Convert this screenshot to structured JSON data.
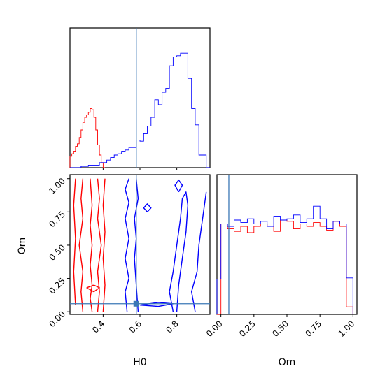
{
  "chart_data": [
    {
      "type": "histogram",
      "panel": "H0 marginal",
      "xlim": [
        0.22,
        0.98
      ],
      "x_ticks": [
        0.4,
        0.6,
        0.8
      ],
      "truth_x": 0.58,
      "colors": {
        "series_a": "#ff0000",
        "series_b": "#0000ff",
        "truth": "#3b78b6"
      },
      "series": [
        {
          "color_key": "series_a",
          "bin_edges": [
            0.22,
            0.23,
            0.24,
            0.25,
            0.26,
            0.27,
            0.28,
            0.29,
            0.3,
            0.31,
            0.32,
            0.33,
            0.34,
            0.35,
            0.36,
            0.37,
            0.38,
            0.39,
            0.4,
            0.41
          ],
          "counts": [
            0.09,
            0.11,
            0.13,
            0.17,
            0.19,
            0.24,
            0.3,
            0.36,
            0.4,
            0.42,
            0.44,
            0.47,
            0.46,
            0.4,
            0.3,
            0.18,
            0.1,
            0.04,
            0.0
          ]
        },
        {
          "color_key": "series_b",
          "bin_edges": [
            0.22,
            0.28,
            0.32,
            0.38,
            0.42,
            0.44,
            0.46,
            0.48,
            0.5,
            0.52,
            0.54,
            0.56,
            0.58,
            0.6,
            0.62,
            0.64,
            0.66,
            0.68,
            0.7,
            0.72,
            0.74,
            0.76,
            0.78,
            0.8,
            0.82,
            0.84,
            0.86,
            0.88,
            0.9,
            0.92,
            0.94,
            0.96,
            0.98
          ],
          "counts": [
            0.0,
            0.01,
            0.02,
            0.04,
            0.06,
            0.08,
            0.1,
            0.11,
            0.13,
            0.14,
            0.16,
            0.16,
            0.22,
            0.21,
            0.27,
            0.33,
            0.4,
            0.54,
            0.5,
            0.6,
            0.63,
            0.81,
            0.88,
            0.89,
            0.91,
            0.91,
            0.71,
            0.47,
            0.34,
            0.1,
            0.1,
            0.0
          ]
        }
      ]
    },
    {
      "type": "contour",
      "panel": "H0 vs Om joint",
      "xlabel": "H0",
      "ylabel": "Om",
      "xlim": [
        0.22,
        0.98
      ],
      "ylim": [
        -0.02,
        1.03
      ],
      "x_ticks": [
        0.4,
        0.6,
        0.8
      ],
      "x_tick_labels": [
        "0.4",
        "0.6",
        "0.8"
      ],
      "y_ticks": [
        0.0,
        0.25,
        0.5,
        0.75,
        1.0
      ],
      "y_tick_labels": [
        "0.00",
        "0.25",
        "0.50",
        "0.75",
        "1.00"
      ],
      "truth_point": [
        0.58,
        0.06
      ],
      "contours": [
        {
          "color_key": "series_a",
          "points": [
            [
              0.34,
              0.0
            ],
            [
              0.33,
              0.1
            ],
            [
              0.34,
              0.2
            ],
            [
              0.33,
              0.35
            ],
            [
              0.34,
              0.5
            ],
            [
              0.33,
              0.65
            ],
            [
              0.34,
              0.8
            ],
            [
              0.33,
              1.0
            ]
          ]
        },
        {
          "color_key": "series_a",
          "points": [
            [
              0.29,
              0.0
            ],
            [
              0.28,
              0.15
            ],
            [
              0.29,
              0.3
            ],
            [
              0.27,
              0.5
            ],
            [
              0.29,
              0.7
            ],
            [
              0.28,
              0.85
            ],
            [
              0.29,
              1.0
            ]
          ]
        },
        {
          "color_key": "series_a",
          "points": [
            [
              0.37,
              0.0
            ],
            [
              0.38,
              0.15
            ],
            [
              0.37,
              0.3
            ],
            [
              0.39,
              0.5
            ],
            [
              0.37,
              0.7
            ],
            [
              0.38,
              0.85
            ],
            [
              0.37,
              1.0
            ]
          ]
        },
        {
          "color_key": "series_a",
          "points": [
            [
              0.4,
              0.0
            ],
            [
              0.41,
              0.2
            ],
            [
              0.4,
              0.4
            ],
            [
              0.41,
              0.6
            ],
            [
              0.4,
              0.8
            ],
            [
              0.41,
              1.0
            ]
          ]
        },
        {
          "color_key": "series_a",
          "points": [
            [
              0.25,
              0.05
            ],
            [
              0.24,
              0.3
            ],
            [
              0.25,
              0.55
            ],
            [
              0.24,
              0.8
            ],
            [
              0.25,
              1.0
            ]
          ]
        },
        {
          "color_key": "series_a",
          "points": [
            [
              0.31,
              0.18
            ],
            [
              0.35,
              0.2
            ],
            [
              0.38,
              0.18
            ],
            [
              0.35,
              0.15
            ],
            [
              0.31,
              0.18
            ]
          ]
        },
        {
          "color_key": "series_b",
          "points": [
            [
              0.53,
              0.0
            ],
            [
              0.52,
              0.15
            ],
            [
              0.54,
              0.25
            ],
            [
              0.52,
              0.4
            ],
            [
              0.54,
              0.55
            ],
            [
              0.52,
              0.7
            ],
            [
              0.54,
              0.82
            ],
            [
              0.52,
              0.92
            ],
            [
              0.54,
              1.0
            ]
          ]
        },
        {
          "color_key": "series_b",
          "points": [
            [
              0.59,
              0.0
            ],
            [
              0.58,
              0.2
            ],
            [
              0.57,
              0.4
            ],
            [
              0.58,
              0.55
            ],
            [
              0.57,
              0.7
            ],
            [
              0.59,
              0.85
            ],
            [
              0.58,
              1.0
            ]
          ]
        },
        {
          "color_key": "series_b",
          "points": [
            [
              0.9,
              0.0
            ],
            [
              0.88,
              0.15
            ],
            [
              0.91,
              0.3
            ],
            [
              0.92,
              0.5
            ],
            [
              0.94,
              0.7
            ],
            [
              0.96,
              0.9
            ]
          ]
        },
        {
          "color_key": "series_b",
          "points": [
            [
              0.78,
              0.0
            ],
            [
              0.76,
              0.15
            ],
            [
              0.78,
              0.3
            ],
            [
              0.8,
              0.5
            ],
            [
              0.82,
              0.7
            ],
            [
              0.83,
              0.85
            ],
            [
              0.85,
              0.9
            ],
            [
              0.86,
              0.8
            ],
            [
              0.85,
              0.6
            ],
            [
              0.83,
              0.4
            ],
            [
              0.81,
              0.2
            ],
            [
              0.8,
              0.0
            ]
          ]
        },
        {
          "color_key": "series_b",
          "points": [
            [
              0.6,
              0.05
            ],
            [
              0.7,
              0.07
            ],
            [
              0.78,
              0.06
            ],
            [
              0.7,
              0.04
            ],
            [
              0.6,
              0.05
            ]
          ]
        },
        {
          "color_key": "series_b",
          "points": [
            [
              0.64,
              0.75
            ],
            [
              0.66,
              0.78
            ],
            [
              0.64,
              0.81
            ],
            [
              0.62,
              0.78
            ],
            [
              0.64,
              0.75
            ]
          ]
        },
        {
          "color_key": "series_b",
          "points": [
            [
              0.81,
              0.9
            ],
            [
              0.83,
              0.95
            ],
            [
              0.81,
              0.99
            ],
            [
              0.79,
              0.95
            ],
            [
              0.81,
              0.9
            ]
          ]
        }
      ]
    },
    {
      "type": "histogram",
      "panel": "Om marginal",
      "xlabel": "Om",
      "xlim": [
        -0.03,
        1.03
      ],
      "x_ticks": [
        0.0,
        0.25,
        0.5,
        0.75,
        1.0
      ],
      "x_tick_labels": [
        "0.00",
        "0.25",
        "0.50",
        "0.75",
        "1.00"
      ],
      "truth_x": 0.06,
      "series": [
        {
          "color_key": "series_a",
          "bin_edges": [
            -0.03,
            0.0,
            0.05,
            0.1,
            0.15,
            0.2,
            0.25,
            0.3,
            0.35,
            0.4,
            0.45,
            0.5,
            0.55,
            0.6,
            0.65,
            0.7,
            0.75,
            0.8,
            0.85,
            0.9,
            0.95,
            1.0
          ],
          "counts": [
            0.0,
            0.72,
            0.68,
            0.66,
            0.7,
            0.65,
            0.7,
            0.72,
            0.7,
            0.66,
            0.75,
            0.74,
            0.68,
            0.72,
            0.7,
            0.73,
            0.7,
            0.67,
            0.74,
            0.7,
            0.06
          ]
        },
        {
          "color_key": "series_b",
          "bin_edges": [
            -0.03,
            0.0,
            0.05,
            0.1,
            0.15,
            0.2,
            0.25,
            0.3,
            0.35,
            0.4,
            0.45,
            0.5,
            0.55,
            0.6,
            0.65,
            0.7,
            0.75,
            0.8,
            0.85,
            0.9,
            0.95,
            1.0
          ],
          "counts": [
            0.28,
            0.72,
            0.7,
            0.75,
            0.73,
            0.76,
            0.72,
            0.74,
            0.7,
            0.78,
            0.75,
            0.76,
            0.79,
            0.73,
            0.76,
            0.86,
            0.76,
            0.68,
            0.74,
            0.72,
            0.29
          ]
        }
      ]
    }
  ]
}
